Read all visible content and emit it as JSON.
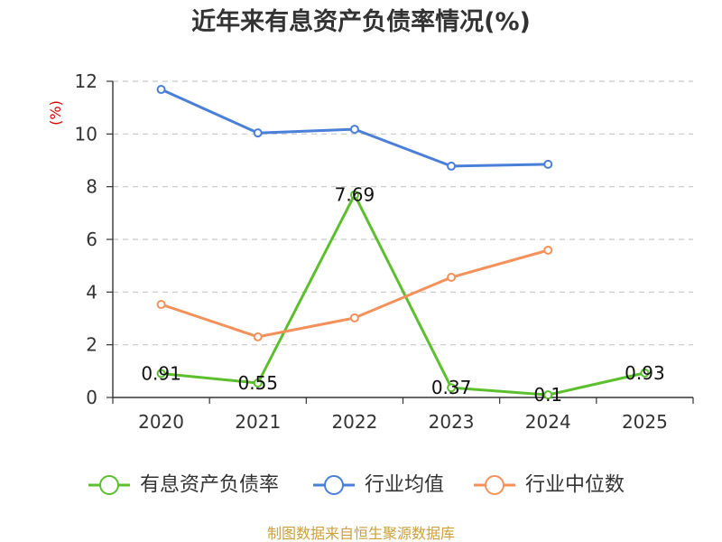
{
  "chart_data": {
    "type": "line",
    "title": "近年来有息资产负债率情况(%)",
    "ylabel": "(%)",
    "categories": [
      "2020",
      "2021",
      "2022",
      "2023",
      "2024",
      "2025"
    ],
    "ylim": [
      0,
      12
    ],
    "ytick_step": 2,
    "grid": true,
    "legend": "bottom",
    "series": [
      {
        "name": "有息资产负债率",
        "color": "#5cbf2e",
        "values": [
          0.91,
          0.55,
          7.69,
          0.37,
          0.1,
          0.93
        ],
        "show_labels": true
      },
      {
        "name": "行业均值",
        "color": "#4a7fd9",
        "values": [
          11.69,
          10.04,
          10.18,
          8.78,
          8.85,
          null
        ],
        "show_labels": false
      },
      {
        "name": "行业中位数",
        "color": "#f4915a",
        "values": [
          3.53,
          2.3,
          3.02,
          4.56,
          5.59,
          null
        ],
        "show_labels": false
      }
    ]
  },
  "footer": {
    "source": "制图数据来自恒生聚源数据库",
    "color": "#c9a03c"
  }
}
